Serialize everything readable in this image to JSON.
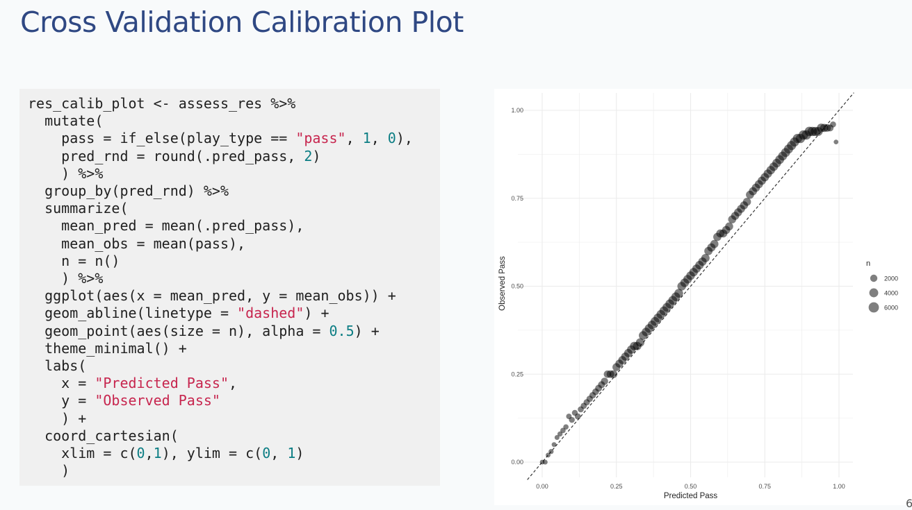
{
  "slide": {
    "title": "Cross Validation Calibration Plot",
    "page_number": "6"
  },
  "code": {
    "language": "r",
    "lines": [
      [
        {
          "t": "res_calib_plot <- assess_res %>%"
        }
      ],
      [
        {
          "t": "  mutate("
        }
      ],
      [
        {
          "t": "    pass = if_else(play_type == "
        },
        {
          "t": "\"pass\"",
          "c": "str"
        },
        {
          "t": ", "
        },
        {
          "t": "1",
          "c": "num"
        },
        {
          "t": ", "
        },
        {
          "t": "0",
          "c": "num"
        },
        {
          "t": "),"
        }
      ],
      [
        {
          "t": "    pred_rnd = round(.pred_pass, "
        },
        {
          "t": "2",
          "c": "num"
        },
        {
          "t": ")"
        }
      ],
      [
        {
          "t": "    ) %>%"
        }
      ],
      [
        {
          "t": "  group_by(pred_rnd) %>%"
        }
      ],
      [
        {
          "t": "  summarize("
        }
      ],
      [
        {
          "t": "    mean_pred = mean(.pred_pass),"
        }
      ],
      [
        {
          "t": "    mean_obs = mean(pass),"
        }
      ],
      [
        {
          "t": "    n = n()"
        }
      ],
      [
        {
          "t": "    ) %>%"
        }
      ],
      [
        {
          "t": "  ggplot(aes(x = mean_pred, y = mean_obs)) +"
        }
      ],
      [
        {
          "t": "  geom_abline(linetype = "
        },
        {
          "t": "\"dashed\"",
          "c": "str"
        },
        {
          "t": ") +"
        }
      ],
      [
        {
          "t": "  geom_point(aes(size = n), alpha = "
        },
        {
          "t": "0.5",
          "c": "num"
        },
        {
          "t": ") +"
        }
      ],
      [
        {
          "t": "  theme_minimal() +"
        }
      ],
      [
        {
          "t": "  labs("
        }
      ],
      [
        {
          "t": "    x = "
        },
        {
          "t": "\"Predicted Pass\"",
          "c": "str"
        },
        {
          "t": ","
        }
      ],
      [
        {
          "t": "    y = "
        },
        {
          "t": "\"Observed Pass\"",
          "c": "str"
        }
      ],
      [
        {
          "t": "    ) +"
        }
      ],
      [
        {
          "t": "  coord_cartesian("
        }
      ],
      [
        {
          "t": "    xlim = c("
        },
        {
          "t": "0",
          "c": "num"
        },
        {
          "t": ","
        },
        {
          "t": "1",
          "c": "num"
        },
        {
          "t": "), ylim = c("
        },
        {
          "t": "0",
          "c": "num"
        },
        {
          "t": ", "
        },
        {
          "t": "1",
          "c": "num"
        },
        {
          "t": ")"
        }
      ],
      [
        {
          "t": "    )"
        }
      ]
    ],
    "colors": {
      "string": "#c7254e",
      "number": "#0b7d83"
    }
  },
  "chart_data": {
    "type": "scatter",
    "xlabel": "Predicted Pass",
    "ylabel": "Observed Pass",
    "xlim": [
      0,
      1
    ],
    "ylim": [
      0,
      1
    ],
    "x_ticks": [
      0,
      0.25,
      0.5,
      0.75,
      1
    ],
    "x_tick_labels": [
      "0.00",
      "0.25",
      "0.50",
      "0.75",
      "1.00"
    ],
    "y_ticks": [
      0,
      0.25,
      0.5,
      0.75,
      1
    ],
    "y_tick_labels": [
      "0.00",
      "0.25",
      "0.50",
      "0.75",
      "1.00"
    ],
    "grid": true,
    "reference_line": {
      "type": "abline",
      "slope": 1,
      "intercept": 0,
      "linetype": "dashed"
    },
    "point_color": "#000000",
    "point_alpha": 0.5,
    "legend": {
      "title": "n",
      "placement": "right",
      "entries": [
        {
          "label": "2000",
          "value": 2000
        },
        {
          "label": "4000",
          "value": 4000
        },
        {
          "label": "6000",
          "value": 6000
        }
      ]
    },
    "points": [
      {
        "x": 0.0,
        "y": 0.0,
        "n": 300
      },
      {
        "x": 0.01,
        "y": 0.0,
        "n": 400
      },
      {
        "x": 0.02,
        "y": 0.02,
        "n": 350
      },
      {
        "x": 0.03,
        "y": 0.03,
        "n": 450
      },
      {
        "x": 0.04,
        "y": 0.05,
        "n": 350
      },
      {
        "x": 0.05,
        "y": 0.07,
        "n": 400
      },
      {
        "x": 0.06,
        "y": 0.08,
        "n": 500
      },
      {
        "x": 0.07,
        "y": 0.09,
        "n": 600
      },
      {
        "x": 0.08,
        "y": 0.1,
        "n": 600
      },
      {
        "x": 0.09,
        "y": 0.13,
        "n": 700
      },
      {
        "x": 0.1,
        "y": 0.12,
        "n": 900
      },
      {
        "x": 0.11,
        "y": 0.14,
        "n": 900
      },
      {
        "x": 0.12,
        "y": 0.13,
        "n": 1000
      },
      {
        "x": 0.13,
        "y": 0.15,
        "n": 1000
      },
      {
        "x": 0.14,
        "y": 0.16,
        "n": 1100
      },
      {
        "x": 0.15,
        "y": 0.17,
        "n": 1200
      },
      {
        "x": 0.16,
        "y": 0.18,
        "n": 1300
      },
      {
        "x": 0.17,
        "y": 0.19,
        "n": 1400
      },
      {
        "x": 0.18,
        "y": 0.2,
        "n": 1500
      },
      {
        "x": 0.19,
        "y": 0.21,
        "n": 1700
      },
      {
        "x": 0.2,
        "y": 0.22,
        "n": 1800
      },
      {
        "x": 0.21,
        "y": 0.23,
        "n": 2000
      },
      {
        "x": 0.22,
        "y": 0.25,
        "n": 2200
      },
      {
        "x": 0.23,
        "y": 0.25,
        "n": 2400
      },
      {
        "x": 0.24,
        "y": 0.25,
        "n": 2600
      },
      {
        "x": 0.25,
        "y": 0.27,
        "n": 2700
      },
      {
        "x": 0.26,
        "y": 0.28,
        "n": 2800
      },
      {
        "x": 0.27,
        "y": 0.29,
        "n": 2900
      },
      {
        "x": 0.28,
        "y": 0.3,
        "n": 3000
      },
      {
        "x": 0.29,
        "y": 0.31,
        "n": 3100
      },
      {
        "x": 0.3,
        "y": 0.32,
        "n": 3200
      },
      {
        "x": 0.31,
        "y": 0.33,
        "n": 3300
      },
      {
        "x": 0.32,
        "y": 0.33,
        "n": 3300
      },
      {
        "x": 0.33,
        "y": 0.34,
        "n": 3400
      },
      {
        "x": 0.34,
        "y": 0.36,
        "n": 3500
      },
      {
        "x": 0.35,
        "y": 0.37,
        "n": 3500
      },
      {
        "x": 0.36,
        "y": 0.38,
        "n": 3600
      },
      {
        "x": 0.37,
        "y": 0.39,
        "n": 3600
      },
      {
        "x": 0.38,
        "y": 0.4,
        "n": 3700
      },
      {
        "x": 0.39,
        "y": 0.41,
        "n": 3700
      },
      {
        "x": 0.4,
        "y": 0.42,
        "n": 3800
      },
      {
        "x": 0.41,
        "y": 0.43,
        "n": 3800
      },
      {
        "x": 0.42,
        "y": 0.44,
        "n": 3800
      },
      {
        "x": 0.43,
        "y": 0.45,
        "n": 3800
      },
      {
        "x": 0.44,
        "y": 0.46,
        "n": 3800
      },
      {
        "x": 0.45,
        "y": 0.47,
        "n": 3700
      },
      {
        "x": 0.46,
        "y": 0.48,
        "n": 3700
      },
      {
        "x": 0.47,
        "y": 0.5,
        "n": 3600
      },
      {
        "x": 0.48,
        "y": 0.51,
        "n": 3600
      },
      {
        "x": 0.49,
        "y": 0.52,
        "n": 3500
      },
      {
        "x": 0.5,
        "y": 0.53,
        "n": 3500
      },
      {
        "x": 0.51,
        "y": 0.54,
        "n": 3400
      },
      {
        "x": 0.52,
        "y": 0.55,
        "n": 3300
      },
      {
        "x": 0.53,
        "y": 0.56,
        "n": 3300
      },
      {
        "x": 0.54,
        "y": 0.57,
        "n": 3200
      },
      {
        "x": 0.55,
        "y": 0.58,
        "n": 3200
      },
      {
        "x": 0.56,
        "y": 0.6,
        "n": 3100
      },
      {
        "x": 0.57,
        "y": 0.61,
        "n": 3100
      },
      {
        "x": 0.58,
        "y": 0.62,
        "n": 3000
      },
      {
        "x": 0.59,
        "y": 0.64,
        "n": 3000
      },
      {
        "x": 0.6,
        "y": 0.65,
        "n": 2900
      },
      {
        "x": 0.61,
        "y": 0.65,
        "n": 2900
      },
      {
        "x": 0.62,
        "y": 0.66,
        "n": 2900
      },
      {
        "x": 0.63,
        "y": 0.67,
        "n": 2800
      },
      {
        "x": 0.64,
        "y": 0.69,
        "n": 2800
      },
      {
        "x": 0.65,
        "y": 0.7,
        "n": 2800
      },
      {
        "x": 0.66,
        "y": 0.71,
        "n": 2800
      },
      {
        "x": 0.67,
        "y": 0.72,
        "n": 2800
      },
      {
        "x": 0.68,
        "y": 0.73,
        "n": 2800
      },
      {
        "x": 0.69,
        "y": 0.74,
        "n": 2800
      },
      {
        "x": 0.7,
        "y": 0.76,
        "n": 2900
      },
      {
        "x": 0.71,
        "y": 0.77,
        "n": 2900
      },
      {
        "x": 0.72,
        "y": 0.78,
        "n": 3000
      },
      {
        "x": 0.73,
        "y": 0.79,
        "n": 3000
      },
      {
        "x": 0.74,
        "y": 0.8,
        "n": 3100
      },
      {
        "x": 0.75,
        "y": 0.81,
        "n": 3200
      },
      {
        "x": 0.76,
        "y": 0.82,
        "n": 3300
      },
      {
        "x": 0.77,
        "y": 0.83,
        "n": 3400
      },
      {
        "x": 0.78,
        "y": 0.84,
        "n": 3500
      },
      {
        "x": 0.79,
        "y": 0.85,
        "n": 3700
      },
      {
        "x": 0.8,
        "y": 0.86,
        "n": 3800
      },
      {
        "x": 0.81,
        "y": 0.87,
        "n": 3900
      },
      {
        "x": 0.82,
        "y": 0.88,
        "n": 4000
      },
      {
        "x": 0.83,
        "y": 0.89,
        "n": 4100
      },
      {
        "x": 0.84,
        "y": 0.9,
        "n": 4200
      },
      {
        "x": 0.85,
        "y": 0.91,
        "n": 4300
      },
      {
        "x": 0.86,
        "y": 0.92,
        "n": 4400
      },
      {
        "x": 0.87,
        "y": 0.92,
        "n": 4500
      },
      {
        "x": 0.88,
        "y": 0.93,
        "n": 4600
      },
      {
        "x": 0.89,
        "y": 0.93,
        "n": 4700
      },
      {
        "x": 0.9,
        "y": 0.94,
        "n": 4600
      },
      {
        "x": 0.91,
        "y": 0.94,
        "n": 4500
      },
      {
        "x": 0.92,
        "y": 0.94,
        "n": 4300
      },
      {
        "x": 0.93,
        "y": 0.94,
        "n": 4000
      },
      {
        "x": 0.94,
        "y": 0.95,
        "n": 3600
      },
      {
        "x": 0.95,
        "y": 0.95,
        "n": 3000
      },
      {
        "x": 0.96,
        "y": 0.95,
        "n": 2400
      },
      {
        "x": 0.97,
        "y": 0.95,
        "n": 1700
      },
      {
        "x": 0.98,
        "y": 0.96,
        "n": 1000
      },
      {
        "x": 0.99,
        "y": 0.91,
        "n": 300
      }
    ]
  }
}
